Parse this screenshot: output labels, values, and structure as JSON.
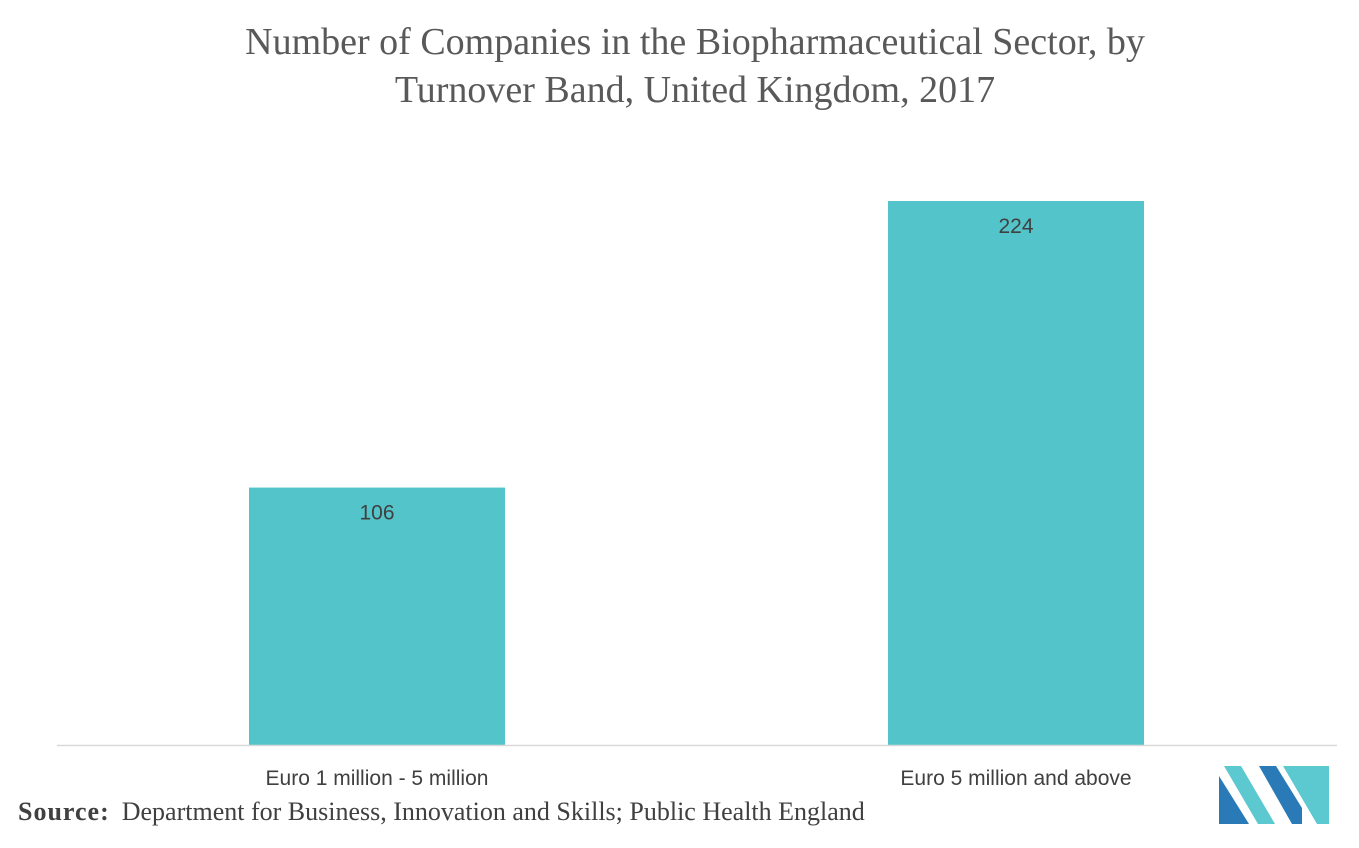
{
  "chart_data": {
    "type": "bar",
    "title_lines": [
      "Number of Companies in the Biopharmaceutical Sector, by",
      "Turnover Band, United Kingdom, 2017"
    ],
    "categories": [
      "Euro 1 million - 5 million",
      "Euro 5 million and above"
    ],
    "values": [
      106,
      224
    ],
    "data_labels": [
      "106",
      "224"
    ],
    "xlabel": "",
    "ylabel": "",
    "ylim": [
      0,
      240
    ],
    "grid": false,
    "legend": "none",
    "bar_color": "#53c4ca"
  },
  "source": {
    "label": "Source:",
    "text": "Department for Business, Innovation and Skills; Public Health England"
  },
  "logo": {
    "icon": "mordor-intelligence-logo",
    "colors": [
      "#2a7ab8",
      "#5cc8d0"
    ]
  }
}
